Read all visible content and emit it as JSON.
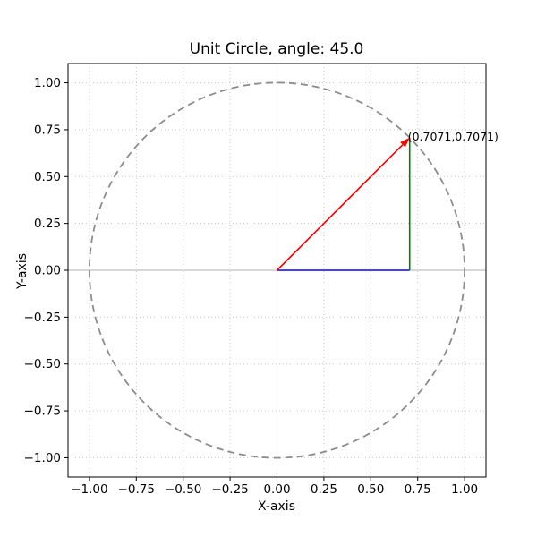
{
  "chart_data": {
    "type": "line",
    "title": "Unit Circle, angle: 45.0",
    "xlabel": "X-axis",
    "ylabel": "Y-axis",
    "angle_degrees": 45.0,
    "point": {
      "x": 0.7071,
      "y": 0.7071
    },
    "annotation": {
      "text": "(0.7071,0.7071)",
      "x": 0.7071,
      "y": 0.7071
    },
    "xlim": [
      -1.114,
      1.114
    ],
    "ylim": [
      -1.103,
      1.103
    ],
    "grid": true,
    "legend": "none",
    "xticks": {
      "values": [
        -1.0,
        -0.75,
        -0.5,
        -0.25,
        0.0,
        0.25,
        0.5,
        0.75,
        1.0
      ],
      "labels": [
        "−1.00",
        "−0.75",
        "−0.50",
        "−0.25",
        "0.00",
        "0.25",
        "0.50",
        "0.75",
        "1.00"
      ]
    },
    "yticks": {
      "values": [
        -1.0,
        -0.75,
        -0.5,
        -0.25,
        0.0,
        0.25,
        0.5,
        0.75,
        1.0
      ],
      "labels": [
        "−1.00",
        "−0.75",
        "−0.50",
        "−0.25",
        "0.00",
        "0.25",
        "0.50",
        "0.75",
        "1.00"
      ]
    },
    "series": [
      {
        "name": "unit-circle",
        "kind": "dashed-circle",
        "center": [
          0,
          0
        ],
        "radius": 1.0,
        "color": "#8c8c8c"
      },
      {
        "name": "cosine-leg",
        "kind": "segment",
        "from": [
          0,
          0
        ],
        "to": [
          0.7071,
          0
        ],
        "color": "#0000ff"
      },
      {
        "name": "sine-leg",
        "kind": "segment",
        "from": [
          0.7071,
          0
        ],
        "to": [
          0.7071,
          0.7071
        ],
        "color": "#008000"
      },
      {
        "name": "hypotenuse",
        "kind": "arrow",
        "from": [
          0,
          0
        ],
        "to": [
          0.7071,
          0.7071
        ],
        "color": "#ff0000"
      }
    ],
    "colors": {
      "grid": "#c9c9c9",
      "axis_lines": "#b0b0b0",
      "spines": "#000000",
      "background": "#ffffff"
    }
  }
}
